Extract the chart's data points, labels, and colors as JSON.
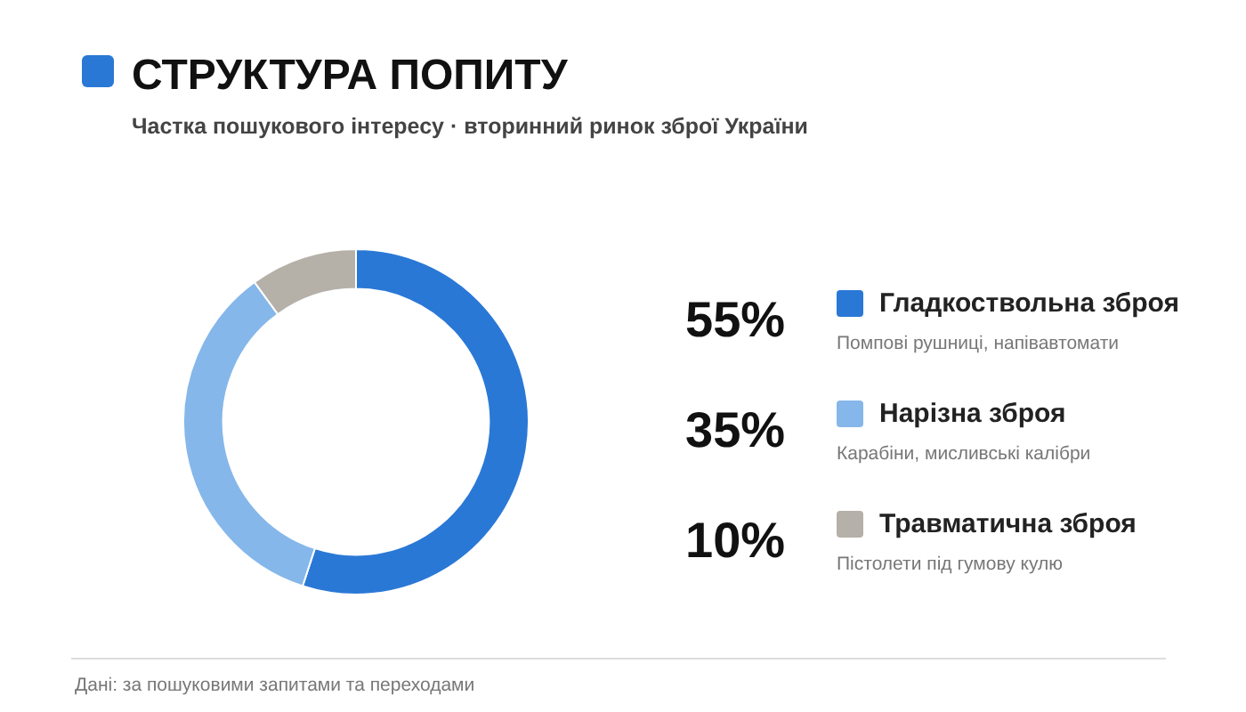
{
  "chart_data": {
    "type": "donut",
    "title": "СТРУКТУРА ПОПИТУ",
    "subtitle": "Частка пошукового інтересу · вторинний ринок зброї України",
    "categories": [
      "Гладкоствольна зброя",
      "Нарізна зброя",
      "Травматична зброя"
    ],
    "values": [
      55,
      35,
      10
    ],
    "colors": [
      "#2a78d6",
      "#85b7ea",
      "#b5b0a8"
    ],
    "value_labels": [
      "55%",
      "35%",
      "10%"
    ],
    "legend": "right",
    "annotations": [
      {
        "text": "Помпові рушниці, напівавтомати",
        "x": "Гладкоствольна зброя"
      },
      {
        "text": "Карабіни, мисливські калібри",
        "x": "Нарізна зброя"
      },
      {
        "text": "Пістолети під гумову кулю",
        "x": "Травматична зброя"
      },
      "Дані: за пошуковими запитами та переходами"
    ]
  }
}
